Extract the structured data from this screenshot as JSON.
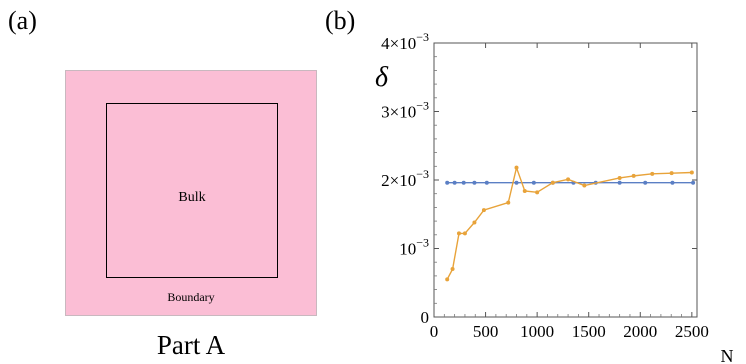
{
  "panel_a": {
    "label": "(a)",
    "bulk_label": "Bulk",
    "boundary_label": "Boundary",
    "caption": "Part A",
    "fill_color": "#fbbed5"
  },
  "panel_b": {
    "label": "(b)"
  },
  "chart_data": {
    "type": "line",
    "ylabel": "δ",
    "xlabel": "N",
    "xlim": [
      0,
      2550
    ],
    "ylim": [
      0,
      0.004
    ],
    "x_ticks": [
      0,
      500,
      1000,
      1500,
      2000,
      2500
    ],
    "x_tick_labels": [
      "0",
      "500",
      "1000",
      "1500",
      "2000",
      "2500"
    ],
    "y_ticks": [
      0,
      0.001,
      0.002,
      0.003,
      0.004
    ],
    "y_tick_labels": [
      {
        "base": "0",
        "exp": ""
      },
      {
        "base": "10",
        "exp": "−3"
      },
      {
        "base": "2×10",
        "exp": "−3"
      },
      {
        "base": "3×10",
        "exp": "−3"
      },
      {
        "base": "4×10",
        "exp": "−3"
      }
    ],
    "grid": false,
    "series": [
      {
        "color": "#5b7fc4",
        "x": [
          128,
          200,
          288,
          392,
          512,
          800,
          968,
          1152,
          1352,
          1568,
          1800,
          2048,
          2312,
          2512
        ],
        "y": [
          0.00196,
          0.00196,
          0.00196,
          0.00196,
          0.00196,
          0.00196,
          0.00196,
          0.00196,
          0.00196,
          0.00196,
          0.00196,
          0.00196,
          0.00196,
          0.00196
        ]
      },
      {
        "color": "#e8a33a",
        "x": [
          128,
          180,
          242,
          300,
          392,
          484,
          720,
          800,
          880,
          1000,
          1152,
          1300,
          1458,
          1800,
          1936,
          2116,
          2304,
          2500
        ],
        "y": [
          0.00055,
          0.0007,
          0.00122,
          0.00122,
          0.00138,
          0.00156,
          0.00167,
          0.00218,
          0.00184,
          0.00182,
          0.00196,
          0.00201,
          0.00192,
          0.00203,
          0.00206,
          0.00209,
          0.0021,
          0.00211
        ]
      }
    ]
  }
}
